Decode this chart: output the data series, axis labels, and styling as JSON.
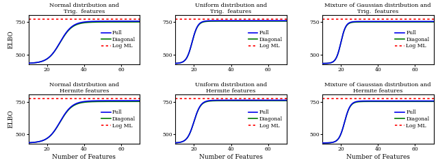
{
  "titles": [
    [
      "Normal distribution and",
      "Trig.  features"
    ],
    [
      "Uniform distribution and",
      "Trig.  features"
    ],
    [
      "Mixture of Gaussian distribution and",
      "Trig.  features"
    ],
    [
      "Normal distribution and",
      "Hermite features"
    ],
    [
      "Uniform distribution and",
      "Hermite features"
    ],
    [
      "Mixture of Gaussian distribution and",
      "Hermite features"
    ]
  ],
  "xlabel": "Number of Features",
  "ylabel": "ELBO",
  "ylim": [
    430,
    805
  ],
  "yticks": [
    500,
    750
  ],
  "xlim": [
    10,
    70
  ],
  "xticks": [
    20,
    40,
    60
  ],
  "log_ml_value": 773,
  "full_color": "#0000ee",
  "diagonal_color": "#007700",
  "logml_color": "#ff0000",
  "curve_params": [
    {
      "inflect_x": 27,
      "saturation_diag": 752,
      "saturation_full": 758,
      "base": 435,
      "steepness": 0.3
    },
    {
      "inflect_x": 19,
      "saturation_diag": 758,
      "saturation_full": 762,
      "base": 435,
      "steepness": 0.65
    },
    {
      "inflect_x": 20,
      "saturation_diag": 752,
      "saturation_full": 756,
      "base": 435,
      "steepness": 0.75
    },
    {
      "inflect_x": 27,
      "saturation_diag": 752,
      "saturation_full": 758,
      "base": 435,
      "steepness": 0.3
    },
    {
      "inflect_x": 20,
      "saturation_diag": 758,
      "saturation_full": 762,
      "base": 435,
      "steepness": 0.55
    },
    {
      "inflect_x": 22,
      "saturation_diag": 752,
      "saturation_full": 756,
      "base": 435,
      "steepness": 0.65
    }
  ],
  "legend_labels": [
    "Full",
    "Diagonal",
    "Log ML"
  ],
  "title_fontsize": 6.0,
  "label_fontsize": 6.5,
  "tick_fontsize": 5.5,
  "legend_fontsize": 5.5,
  "line_width": 1.2,
  "logml_linewidth": 1.2
}
